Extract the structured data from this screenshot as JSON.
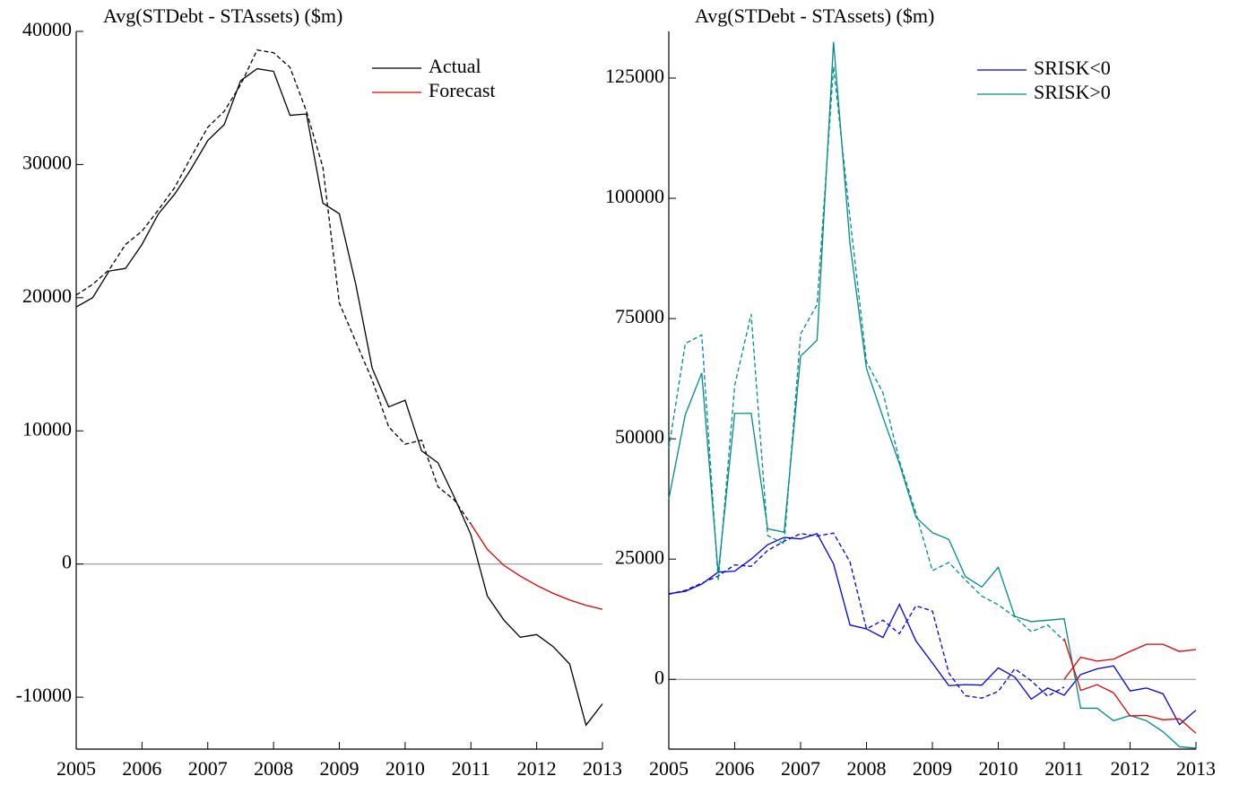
{
  "chart_data": [
    {
      "type": "line",
      "title": "Avg(STDebt - STAssets) ($m)",
      "x": [
        2005,
        2005.25,
        2005.5,
        2005.75,
        2006,
        2006.25,
        2006.5,
        2006.75,
        2007,
        2007.25,
        2007.5,
        2007.75,
        2008,
        2008.25,
        2008.5,
        2008.75,
        2009,
        2009.25,
        2009.5,
        2009.75,
        2010,
        2010.25,
        2010.5,
        2010.75,
        2011,
        2011.25,
        2011.5,
        2011.75,
        2012,
        2012.25,
        2012.5,
        2012.75,
        2013
      ],
      "xlim": [
        2005,
        2013
      ],
      "xticks": [
        2005,
        2006,
        2007,
        2008,
        2009,
        2010,
        2011,
        2012,
        2013
      ],
      "ylim": [
        -13900,
        40000
      ],
      "yticks": [
        -10000,
        0,
        10000,
        20000,
        30000,
        40000
      ],
      "reference_line": 0,
      "series": [
        {
          "name": "Actual",
          "color": "#000000",
          "dashed": false,
          "values": [
            19300,
            20000,
            22000,
            22200,
            24000,
            26300,
            27800,
            29700,
            31800,
            33000,
            36300,
            37200,
            37000,
            33700,
            33800,
            27100,
            26300,
            21000,
            14700,
            11800,
            12300,
            8500,
            7600,
            5000,
            2200,
            -2400,
            -4200,
            -5500,
            -5300,
            -6200,
            -7500,
            -12100,
            -10500
          ]
        },
        {
          "color": "#000000",
          "dashed": true,
          "values": [
            20200,
            21000,
            22100,
            24000,
            25000,
            26600,
            28300,
            30600,
            32800,
            34000,
            36000,
            38600,
            38400,
            37300,
            34000,
            29800,
            19600,
            16700,
            13800,
            10300,
            9000,
            9300,
            5800,
            4800,
            3000,
            null,
            null,
            null,
            null,
            null,
            null,
            null,
            null
          ]
        },
        {
          "name": "Forecast",
          "color": "#dd0000",
          "dashed": false,
          "values": [
            null,
            null,
            null,
            null,
            null,
            null,
            null,
            null,
            null,
            null,
            null,
            null,
            null,
            null,
            null,
            null,
            null,
            null,
            null,
            null,
            null,
            null,
            null,
            null,
            3000,
            1100,
            -100,
            -900,
            -1600,
            -2200,
            -2700,
            -3100,
            -3400
          ]
        }
      ]
    },
    {
      "type": "line",
      "title": "Avg(STDebt - STAssets) ($m)",
      "x": [
        2005,
        2005.25,
        2005.5,
        2005.75,
        2006,
        2006.25,
        2006.5,
        2006.75,
        2007,
        2007.25,
        2007.5,
        2007.75,
        2008,
        2008.25,
        2008.5,
        2008.75,
        2009,
        2009.25,
        2009.5,
        2009.75,
        2010,
        2010.25,
        2010.5,
        2010.75,
        2011,
        2011.25,
        2011.5,
        2011.75,
        2012,
        2012.25,
        2012.5,
        2012.75,
        2013
      ],
      "xlim": [
        2005,
        2013
      ],
      "xticks": [
        2005,
        2006,
        2007,
        2008,
        2009,
        2010,
        2011,
        2012,
        2013
      ],
      "ylim": [
        -14500,
        134700
      ],
      "yticks": [
        0,
        25000,
        50000,
        75000,
        100000,
        125000
      ],
      "reference_line": 0,
      "series": [
        {
          "name": "SRISK<0",
          "color": "#0000dd",
          "dashed": false,
          "values": [
            17800,
            18300,
            19800,
            22300,
            22500,
            25000,
            28000,
            29500,
            29200,
            30300,
            24000,
            11300,
            10500,
            8700,
            15600,
            8000,
            3400,
            -1300,
            -1100,
            -1200,
            2400,
            500,
            -4100,
            -1800,
            -3300,
            1000,
            2200,
            2800,
            -2400,
            -1800,
            -3000,
            -9400,
            -6400
          ]
        },
        {
          "name": "SRISK>0",
          "color": "#008b8b",
          "dashed": false,
          "values": [
            37500,
            55000,
            63700,
            22000,
            55300,
            55300,
            31300,
            30600,
            67200,
            70500,
            132500,
            90500,
            64600,
            54500,
            44800,
            33700,
            30500,
            29100,
            21400,
            19200,
            23300,
            13100,
            12000,
            12300,
            12600,
            -6000,
            -6000,
            -8600,
            -7500,
            -8600,
            -10900,
            -14000,
            -14300
          ]
        },
        {
          "color": "#0000dd",
          "dashed": true,
          "values": [
            17700,
            18500,
            20000,
            21500,
            23800,
            23500,
            26800,
            28700,
            30300,
            29800,
            30400,
            24400,
            10500,
            12300,
            9500,
            15300,
            14200,
            1300,
            -3400,
            -3900,
            -2500,
            2200,
            -300,
            -3500,
            -1600,
            null,
            null,
            null,
            null,
            null,
            null,
            null,
            null
          ]
        },
        {
          "color": "#008b8b",
          "dashed": true,
          "values": [
            48000,
            69800,
            71600,
            20500,
            61100,
            75900,
            29900,
            28200,
            71800,
            77900,
            127400,
            95900,
            66000,
            59600,
            45400,
            34600,
            22600,
            24300,
            20700,
            17300,
            15500,
            13000,
            9900,
            11300,
            8000,
            null,
            null,
            null,
            null,
            null,
            null,
            null,
            null
          ]
        },
        {
          "color": "#dd0000",
          "dashed": false,
          "values": [
            null,
            null,
            null,
            null,
            null,
            null,
            null,
            null,
            null,
            null,
            null,
            null,
            null,
            null,
            null,
            null,
            null,
            null,
            null,
            null,
            null,
            null,
            null,
            null,
            0,
            4600,
            3800,
            4200,
            5800,
            7300,
            7300,
            5800,
            6200
          ]
        },
        {
          "color": "#dd0000",
          "dashed": false,
          "values": [
            null,
            null,
            null,
            null,
            null,
            null,
            null,
            null,
            null,
            null,
            null,
            null,
            null,
            null,
            null,
            null,
            null,
            null,
            null,
            null,
            null,
            null,
            null,
            null,
            8500,
            -2300,
            -1100,
            -2800,
            -7600,
            -7500,
            -8400,
            -8200,
            -11200
          ]
        }
      ]
    }
  ]
}
